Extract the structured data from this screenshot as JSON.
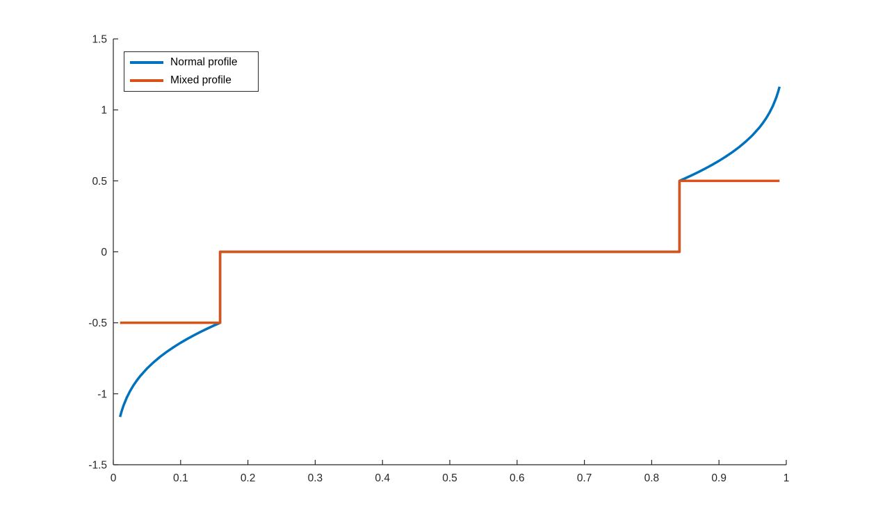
{
  "figure": {
    "background_color": "#ffffff",
    "axis_color": "#262626",
    "tick_label_color": "#262626",
    "legend_border_color": "#262626",
    "legend_text_color": "#000000"
  },
  "chart_data": {
    "type": "line",
    "title": "",
    "xlabel": "",
    "ylabel": "",
    "xlim": [
      0,
      1
    ],
    "ylim": [
      -1.5,
      1.5
    ],
    "grid": false,
    "box": false,
    "tick_direction": "in",
    "legend_position": "top-left",
    "x_ticks": {
      "values": [
        0,
        0.1,
        0.2,
        0.3,
        0.4,
        0.5,
        0.6,
        0.7,
        0.8,
        0.9,
        1
      ],
      "labels": [
        "0",
        "0.1",
        "0.2",
        "0.3",
        "0.4",
        "0.5",
        "0.6",
        "0.7",
        "0.8",
        "0.9",
        "1"
      ]
    },
    "y_ticks": {
      "values": [
        -1.5,
        -1,
        -0.5,
        0,
        0.5,
        1,
        1.5
      ],
      "labels": [
        "-1.5",
        "-1",
        "-0.5",
        "0",
        "0.5",
        "1",
        "1.5"
      ]
    },
    "series": [
      {
        "name": "Normal profile",
        "color": "#0072BD",
        "line_width": 3.5,
        "points": [
          [
            0.01,
            -1.1632
          ],
          [
            0.012,
            -1.1286
          ],
          [
            0.015,
            -1.085
          ],
          [
            0.02,
            -1.0269
          ],
          [
            0.025,
            -0.98
          ],
          [
            0.03,
            -0.9404
          ],
          [
            0.035,
            -0.906
          ],
          [
            0.04,
            -0.8753
          ],
          [
            0.05,
            -0.8224
          ],
          [
            0.06,
            -0.7774
          ],
          [
            0.07,
            -0.7379
          ],
          [
            0.08,
            -0.7025
          ],
          [
            0.09,
            -0.6704
          ],
          [
            0.1,
            -0.6408
          ],
          [
            0.11,
            -0.6133
          ],
          [
            0.12,
            -0.5875
          ],
          [
            0.13,
            -0.5632
          ],
          [
            0.14,
            -0.5402
          ],
          [
            0.15,
            -0.5182
          ],
          [
            0.155,
            -0.5076
          ],
          [
            0.1587,
            -0.5
          ],
          [
            0.1587,
            0
          ],
          [
            0.8413,
            0
          ],
          [
            0.8413,
            0.5
          ],
          [
            0.845,
            0.5076
          ],
          [
            0.85,
            0.5182
          ],
          [
            0.86,
            0.5402
          ],
          [
            0.87,
            0.5632
          ],
          [
            0.88,
            0.5875
          ],
          [
            0.89,
            0.6133
          ],
          [
            0.9,
            0.6408
          ],
          [
            0.91,
            0.6704
          ],
          [
            0.92,
            0.7025
          ],
          [
            0.93,
            0.7379
          ],
          [
            0.94,
            0.7774
          ],
          [
            0.95,
            0.8224
          ],
          [
            0.96,
            0.8753
          ],
          [
            0.965,
            0.906
          ],
          [
            0.97,
            0.9404
          ],
          [
            0.975,
            0.98
          ],
          [
            0.98,
            1.0269
          ],
          [
            0.985,
            1.085
          ],
          [
            0.988,
            1.1286
          ],
          [
            0.99,
            1.1632
          ]
        ]
      },
      {
        "name": "Mixed profile",
        "color": "#D95319",
        "line_width": 3.5,
        "points": [
          [
            0.01,
            -0.5
          ],
          [
            0.1587,
            -0.5
          ],
          [
            0.1587,
            0
          ],
          [
            0.8413,
            0
          ],
          [
            0.8413,
            0.5
          ],
          [
            0.99,
            0.5
          ]
        ]
      }
    ]
  }
}
